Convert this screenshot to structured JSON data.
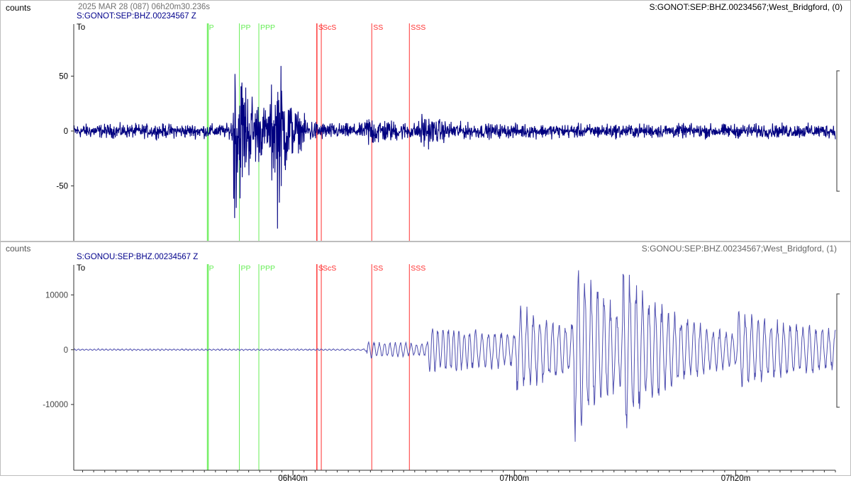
{
  "header": {
    "datetime": "2025 MAR 28 (087)  06h20m30.236s"
  },
  "colors": {
    "trace": "#000080",
    "trace_light": "#5050b0",
    "p_phase": "#66ee55",
    "s_phase": "#ff3030",
    "label_blue": "#00008b",
    "text": "#000000",
    "axis": "#333333"
  },
  "chart_data": [
    {
      "type": "line",
      "title": "S:GONOT:SEP:BHZ.00234567 Z",
      "station_label": "S:GONOT:SEP:BHZ.00234567;West_Bridgford, (0)",
      "ylabel": "counts",
      "yticks": [
        50,
        0,
        -50
      ],
      "ylim": [
        -100,
        100
      ],
      "origin_label": "To",
      "trace_kind": "short_period_noise_with_quake",
      "trace_envelope": {
        "noise": 7,
        "events": [
          {
            "t": 36.0,
            "peak": 85,
            "decay": 4.5
          },
          {
            "t": 44.5,
            "peak": 40,
            "decay": 3
          },
          {
            "t": 46.0,
            "peak": 45,
            "decay": 2
          },
          {
            "t": 66.0,
            "peak": 12,
            "decay": 5
          },
          {
            "t": 78.0,
            "peak": 13,
            "decay": 4
          }
        ]
      }
    },
    {
      "type": "line",
      "title": "S:GONOU:SEP:BHZ.00234567 Z",
      "station_label": "S:GONOU:SEP:BHZ.00234567;West_Bridgford, (1)",
      "ylabel": "counts",
      "yticks": [
        10000,
        0,
        -10000
      ],
      "ylim": [
        -22000,
        16000
      ],
      "origin_label": "To",
      "trace_kind": "long_period_surface_waves",
      "trace_envelope": {
        "noise": 120,
        "events": [
          {
            "t": 66.2,
            "peak": 1400,
            "decay": 40
          },
          {
            "t": 80,
            "peak": 3200,
            "decay": 60
          },
          {
            "t": 100,
            "peak": 5200,
            "decay": 14
          },
          {
            "t": 113,
            "peak": 13000,
            "decay": 9
          },
          {
            "t": 124,
            "peak": 8000,
            "decay": 14
          },
          {
            "t": 150,
            "peak": 4000,
            "decay": 40
          }
        ]
      }
    }
  ],
  "x_axis": {
    "unit": "minutes",
    "start_time": "06h20m30.236s",
    "xlim": [
      0,
      172
    ],
    "ticks": [
      {
        "t": 49.5,
        "label": "06h40m"
      },
      {
        "t": 99.5,
        "label": "07h00m"
      },
      {
        "t": 149.5,
        "label": "07h20m"
      }
    ],
    "minor_step": 2.5,
    "minor_offset": 2.0
  },
  "phases": [
    {
      "name": "P",
      "t": 30.2,
      "kind": "P",
      "label_visible": true
    },
    {
      "name": "PcP",
      "t": 30.4,
      "kind": "P",
      "label_visible": false
    },
    {
      "name": "PP",
      "t": 37.4,
      "kind": "P",
      "label_visible": true
    },
    {
      "name": "PPP",
      "t": 41.8,
      "kind": "P",
      "label_visible": true
    },
    {
      "name": "S",
      "t": 54.9,
      "kind": "S",
      "label_visible": true
    },
    {
      "name": "ScS",
      "t": 55.9,
      "kind": "S",
      "label_visible": true
    },
    {
      "name": "SS",
      "t": 67.3,
      "kind": "S",
      "label_visible": true
    },
    {
      "name": "SSS",
      "t": 75.8,
      "kind": "S",
      "label_visible": true
    }
  ]
}
